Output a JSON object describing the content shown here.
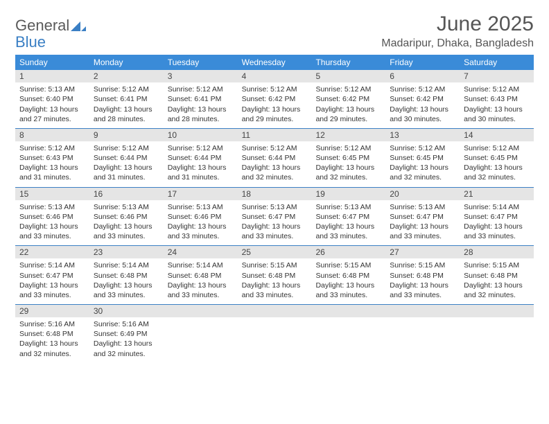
{
  "brand": {
    "text1": "General",
    "text2": "Blue"
  },
  "title": "June 2025",
  "location": "Madaripur, Dhaka, Bangladesh",
  "colors": {
    "header_bg": "#3a8bd8",
    "header_text": "#ffffff",
    "daynum_bg": "#e5e5e5",
    "week_border": "#3a7fc4",
    "body_text": "#333333",
    "title_text": "#555555",
    "logo_gray": "#5a5a5a",
    "logo_blue": "#3a7fc4"
  },
  "dow": [
    "Sunday",
    "Monday",
    "Tuesday",
    "Wednesday",
    "Thursday",
    "Friday",
    "Saturday"
  ],
  "weeks": [
    [
      {
        "n": "1",
        "sr": "5:13 AM",
        "ss": "6:40 PM",
        "dl": "13 hours and 27 minutes."
      },
      {
        "n": "2",
        "sr": "5:12 AM",
        "ss": "6:41 PM",
        "dl": "13 hours and 28 minutes."
      },
      {
        "n": "3",
        "sr": "5:12 AM",
        "ss": "6:41 PM",
        "dl": "13 hours and 28 minutes."
      },
      {
        "n": "4",
        "sr": "5:12 AM",
        "ss": "6:42 PM",
        "dl": "13 hours and 29 minutes."
      },
      {
        "n": "5",
        "sr": "5:12 AM",
        "ss": "6:42 PM",
        "dl": "13 hours and 29 minutes."
      },
      {
        "n": "6",
        "sr": "5:12 AM",
        "ss": "6:42 PM",
        "dl": "13 hours and 30 minutes."
      },
      {
        "n": "7",
        "sr": "5:12 AM",
        "ss": "6:43 PM",
        "dl": "13 hours and 30 minutes."
      }
    ],
    [
      {
        "n": "8",
        "sr": "5:12 AM",
        "ss": "6:43 PM",
        "dl": "13 hours and 31 minutes."
      },
      {
        "n": "9",
        "sr": "5:12 AM",
        "ss": "6:44 PM",
        "dl": "13 hours and 31 minutes."
      },
      {
        "n": "10",
        "sr": "5:12 AM",
        "ss": "6:44 PM",
        "dl": "13 hours and 31 minutes."
      },
      {
        "n": "11",
        "sr": "5:12 AM",
        "ss": "6:44 PM",
        "dl": "13 hours and 32 minutes."
      },
      {
        "n": "12",
        "sr": "5:12 AM",
        "ss": "6:45 PM",
        "dl": "13 hours and 32 minutes."
      },
      {
        "n": "13",
        "sr": "5:12 AM",
        "ss": "6:45 PM",
        "dl": "13 hours and 32 minutes."
      },
      {
        "n": "14",
        "sr": "5:12 AM",
        "ss": "6:45 PM",
        "dl": "13 hours and 32 minutes."
      }
    ],
    [
      {
        "n": "15",
        "sr": "5:13 AM",
        "ss": "6:46 PM",
        "dl": "13 hours and 33 minutes."
      },
      {
        "n": "16",
        "sr": "5:13 AM",
        "ss": "6:46 PM",
        "dl": "13 hours and 33 minutes."
      },
      {
        "n": "17",
        "sr": "5:13 AM",
        "ss": "6:46 PM",
        "dl": "13 hours and 33 minutes."
      },
      {
        "n": "18",
        "sr": "5:13 AM",
        "ss": "6:47 PM",
        "dl": "13 hours and 33 minutes."
      },
      {
        "n": "19",
        "sr": "5:13 AM",
        "ss": "6:47 PM",
        "dl": "13 hours and 33 minutes."
      },
      {
        "n": "20",
        "sr": "5:13 AM",
        "ss": "6:47 PM",
        "dl": "13 hours and 33 minutes."
      },
      {
        "n": "21",
        "sr": "5:14 AM",
        "ss": "6:47 PM",
        "dl": "13 hours and 33 minutes."
      }
    ],
    [
      {
        "n": "22",
        "sr": "5:14 AM",
        "ss": "6:47 PM",
        "dl": "13 hours and 33 minutes."
      },
      {
        "n": "23",
        "sr": "5:14 AM",
        "ss": "6:48 PM",
        "dl": "13 hours and 33 minutes."
      },
      {
        "n": "24",
        "sr": "5:14 AM",
        "ss": "6:48 PM",
        "dl": "13 hours and 33 minutes."
      },
      {
        "n": "25",
        "sr": "5:15 AM",
        "ss": "6:48 PM",
        "dl": "13 hours and 33 minutes."
      },
      {
        "n": "26",
        "sr": "5:15 AM",
        "ss": "6:48 PM",
        "dl": "13 hours and 33 minutes."
      },
      {
        "n": "27",
        "sr": "5:15 AM",
        "ss": "6:48 PM",
        "dl": "13 hours and 33 minutes."
      },
      {
        "n": "28",
        "sr": "5:15 AM",
        "ss": "6:48 PM",
        "dl": "13 hours and 32 minutes."
      }
    ],
    [
      {
        "n": "29",
        "sr": "5:16 AM",
        "ss": "6:48 PM",
        "dl": "13 hours and 32 minutes."
      },
      {
        "n": "30",
        "sr": "5:16 AM",
        "ss": "6:49 PM",
        "dl": "13 hours and 32 minutes."
      },
      {
        "empty": true
      },
      {
        "empty": true
      },
      {
        "empty": true
      },
      {
        "empty": true
      },
      {
        "empty": true
      }
    ]
  ],
  "labels": {
    "sunrise": "Sunrise:",
    "sunset": "Sunset:",
    "daylight": "Daylight:"
  }
}
